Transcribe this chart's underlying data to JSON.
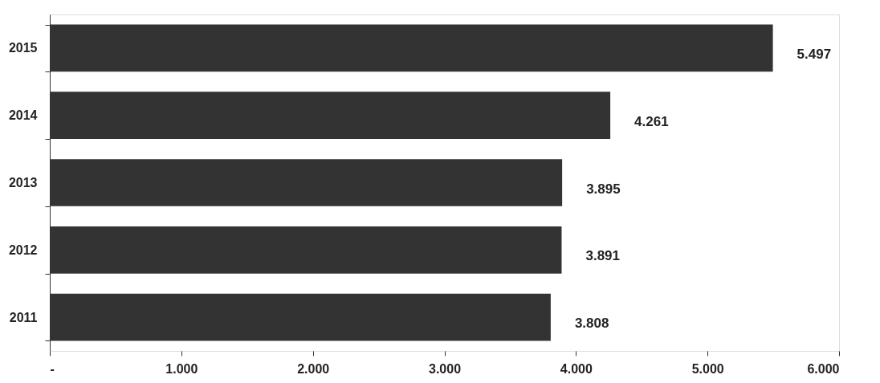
{
  "chart_data": {
    "type": "bar",
    "orientation": "horizontal",
    "categories": [
      "2015",
      "2014",
      "2013",
      "2012",
      "2011"
    ],
    "values": [
      5497,
      4261,
      3895,
      3891,
      3808
    ],
    "value_labels": [
      "5.497",
      "4.261",
      "3.895",
      "3.891",
      "3.808"
    ],
    "color": "#333333",
    "xlim": [
      0,
      6000
    ],
    "xticks": [
      {
        "value": 0,
        "label": "-"
      },
      {
        "value": 1000,
        "label": "1.000"
      },
      {
        "value": 2000,
        "label": "2.000"
      },
      {
        "value": 3000,
        "label": "3.000"
      },
      {
        "value": 4000,
        "label": "4.000"
      },
      {
        "value": 5000,
        "label": "5.000"
      },
      {
        "value": 6000,
        "label": "6.000"
      }
    ],
    "grid": false
  }
}
